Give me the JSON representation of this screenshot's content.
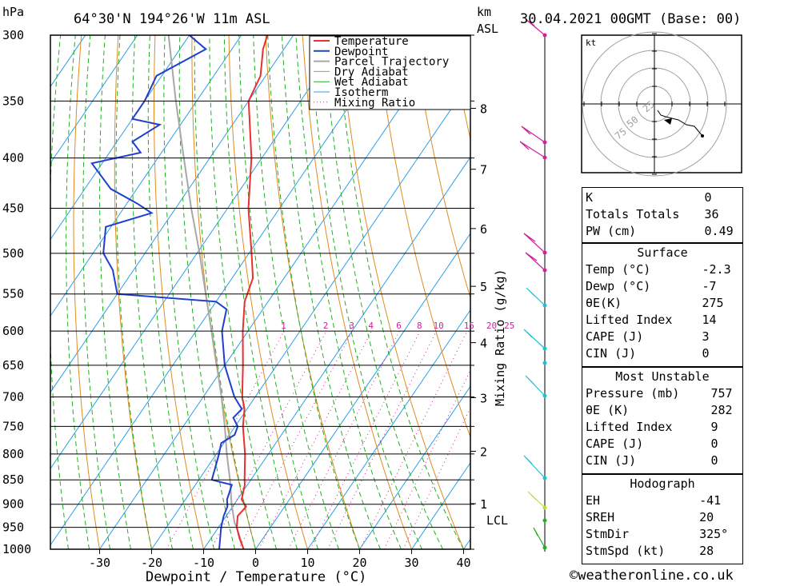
{
  "header": {
    "hpa_label": "hPa",
    "location": "64°30'N  194°26'W  11m  ASL",
    "km_label": "km",
    "asl_label": "ASL",
    "datetime": "30.04.2021  00GMT  (Base: 00)"
  },
  "legend": [
    "Temperature",
    "Dewpoint",
    "Parcel Trajectory",
    "Dry Adiabat",
    "Wet Adiabat",
    "Isotherm",
    "Mixing Ratio"
  ],
  "colors": {
    "temperature": "#e83030",
    "dewpoint": "#1f3fd0",
    "parcel": "#a8a8a8",
    "dry_adiabat": "#e08a20",
    "wet_adiabat": "#20b020",
    "isotherm": "#2aa0e8",
    "mixing_ratio": "#d0209a"
  },
  "chart_data": {
    "type": "skew-t",
    "xlabel": "Dewpoint / Temperature (°C)",
    "ylabel_right": "Mixing Ratio (g/kg)",
    "pressure_levels": [
      300,
      350,
      400,
      450,
      500,
      550,
      600,
      650,
      700,
      750,
      800,
      850,
      900,
      950,
      1000
    ],
    "temperature_ticks": [
      -30,
      -20,
      -10,
      0,
      10,
      20,
      30,
      40
    ],
    "km_ticks": [
      "8",
      "7",
      "6",
      "5",
      "4",
      "3",
      "2",
      "1"
    ],
    "lcl_label": "LCL",
    "mixing_ratio_labels": [
      "1",
      "2",
      "3",
      "4",
      "6",
      "8",
      "10",
      "15",
      "20",
      "25"
    ],
    "temperature_profile": [
      {
        "p": 1000,
        "t": -2.3
      },
      {
        "p": 975,
        "t": -4.5
      },
      {
        "p": 950,
        "t": -6.5
      },
      {
        "p": 925,
        "t": -7.8
      },
      {
        "p": 905,
        "t": -7.4
      },
      {
        "p": 890,
        "t": -9.2
      },
      {
        "p": 860,
        "t": -10.5
      },
      {
        "p": 850,
        "t": -11.2
      },
      {
        "p": 800,
        "t": -14.5
      },
      {
        "p": 750,
        "t": -18.5
      },
      {
        "p": 720,
        "t": -20.5
      },
      {
        "p": 700,
        "t": -22.5
      },
      {
        "p": 650,
        "t": -26.5
      },
      {
        "p": 600,
        "t": -31
      },
      {
        "p": 560,
        "t": -34.5
      },
      {
        "p": 530,
        "t": -36
      },
      {
        "p": 500,
        "t": -39.5
      },
      {
        "p": 450,
        "t": -46
      },
      {
        "p": 400,
        "t": -52
      },
      {
        "p": 350,
        "t": -60
      },
      {
        "p": 330,
        "t": -61
      },
      {
        "p": 310,
        "t": -64
      },
      {
        "p": 300,
        "t": -65
      }
    ],
    "dewpoint_profile": [
      {
        "p": 1000,
        "t": -7
      },
      {
        "p": 950,
        "t": -9.5
      },
      {
        "p": 925,
        "t": -10.5
      },
      {
        "p": 905,
        "t": -11
      },
      {
        "p": 890,
        "t": -12
      },
      {
        "p": 860,
        "t": -13
      },
      {
        "p": 850,
        "t": -17.5
      },
      {
        "p": 800,
        "t": -19.5
      },
      {
        "p": 780,
        "t": -20.5
      },
      {
        "p": 765,
        "t": -19
      },
      {
        "p": 750,
        "t": -19.5
      },
      {
        "p": 735,
        "t": -21.5
      },
      {
        "p": 720,
        "t": -21
      },
      {
        "p": 700,
        "t": -24
      },
      {
        "p": 650,
        "t": -30
      },
      {
        "p": 600,
        "t": -35
      },
      {
        "p": 570,
        "t": -37
      },
      {
        "p": 560,
        "t": -40
      },
      {
        "p": 550,
        "t": -60
      },
      {
        "p": 520,
        "t": -64
      },
      {
        "p": 500,
        "t": -68
      },
      {
        "p": 470,
        "t": -71
      },
      {
        "p": 455,
        "t": -64
      },
      {
        "p": 445,
        "t": -68
      },
      {
        "p": 430,
        "t": -75
      },
      {
        "p": 405,
        "t": -82
      },
      {
        "p": 395,
        "t": -74
      },
      {
        "p": 385,
        "t": -77
      },
      {
        "p": 370,
        "t": -74
      },
      {
        "p": 365,
        "t": -80
      },
      {
        "p": 350,
        "t": -80
      },
      {
        "p": 330,
        "t": -81
      },
      {
        "p": 310,
        "t": -75
      },
      {
        "p": 300,
        "t": -80
      }
    ],
    "parcel_profile": [
      {
        "p": 1000,
        "t": -2.3
      },
      {
        "p": 950,
        "t": -6.5
      },
      {
        "p": 940,
        "t": -7.5
      },
      {
        "p": 900,
        "t": -10.5
      },
      {
        "p": 850,
        "t": -14
      },
      {
        "p": 800,
        "t": -18
      },
      {
        "p": 750,
        "t": -22
      },
      {
        "p": 700,
        "t": -26.5
      },
      {
        "p": 650,
        "t": -31.5
      },
      {
        "p": 600,
        "t": -37
      },
      {
        "p": 550,
        "t": -43
      },
      {
        "p": 500,
        "t": -49.5
      },
      {
        "p": 450,
        "t": -57
      },
      {
        "p": 400,
        "t": -65
      },
      {
        "p": 350,
        "t": -74
      },
      {
        "p": 300,
        "t": -84
      }
    ]
  },
  "hodograph": {
    "unit": "kt",
    "ring_labels": [
      "25",
      "50",
      "75"
    ]
  },
  "indices": {
    "general": [
      {
        "label": "K",
        "value": "0"
      },
      {
        "label": "Totals Totals",
        "value": "36"
      },
      {
        "label": "PW (cm)",
        "value": "0.49"
      }
    ],
    "surface": {
      "title": "Surface",
      "rows": [
        {
          "label": "Temp (°C)",
          "value": "-2.3"
        },
        {
          "label": "Dewp (°C)",
          "value": "-7"
        },
        {
          "label": "θE(K)",
          "value": "275"
        },
        {
          "label": "Lifted Index",
          "value": "14"
        },
        {
          "label": "CAPE (J)",
          "value": "3"
        },
        {
          "label": "CIN (J)",
          "value": "0"
        }
      ]
    },
    "most_unstable": {
      "title": "Most Unstable",
      "rows": [
        {
          "label": "Pressure (mb)",
          "value": "757"
        },
        {
          "label": "θE (K)",
          "value": "282"
        },
        {
          "label": "Lifted Index",
          "value": "9"
        },
        {
          "label": "CAPE (J)",
          "value": "0"
        },
        {
          "label": "CIN (J)",
          "value": "0"
        }
      ]
    },
    "hodograph": {
      "title": "Hodograph",
      "rows": [
        {
          "label": "EH",
          "value": "-41"
        },
        {
          "label": "SREH",
          "value": "20"
        },
        {
          "label": "StmDir",
          "value": "325°"
        },
        {
          "label": "StmSpd (kt)",
          "value": "28"
        }
      ]
    }
  },
  "copyright": "©weatheronline.co.uk"
}
